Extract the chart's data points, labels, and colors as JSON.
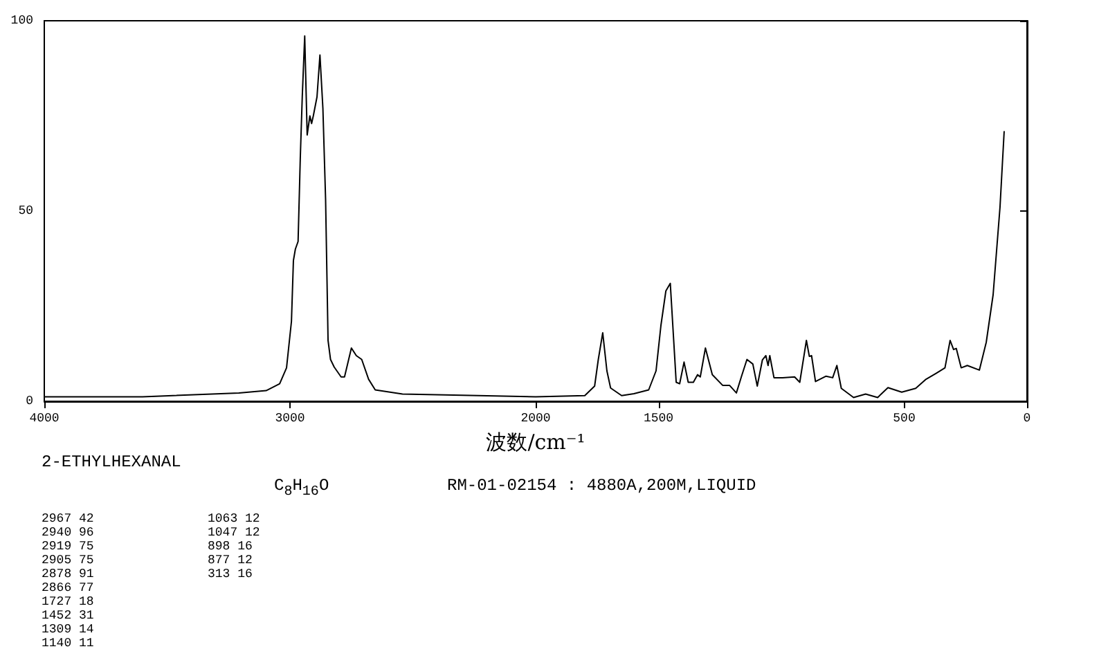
{
  "chart_data": {
    "type": "line",
    "xlabel": "波数/cm⁻¹",
    "xlim": [
      4000,
      0
    ],
    "ylim": [
      0,
      100
    ],
    "xticks": [
      4000,
      3000,
      2000,
      1500,
      500,
      0
    ],
    "yticks": [
      0,
      50,
      100
    ],
    "grid": false,
    "marker": "none",
    "line_style": "solid",
    "series": [
      {
        "color": "#000000",
        "x": [
          4000,
          3600,
          3208,
          3097,
          3042,
          3014,
          2994,
          2986,
          2978,
          2967,
          2958,
          2950,
          2940,
          2930,
          2919,
          2912,
          2905,
          2890,
          2878,
          2866,
          2855,
          2845,
          2835,
          2820,
          2792,
          2778,
          2750,
          2730,
          2708,
          2680,
          2653,
          2542,
          2300,
          2000,
          1800,
          1760,
          1745,
          1727,
          1710,
          1695,
          1650,
          1600,
          1540,
          1510,
          1490,
          1470,
          1452,
          1428,
          1414,
          1396,
          1379,
          1358,
          1341,
          1330,
          1309,
          1281,
          1239,
          1211,
          1183,
          1162,
          1140,
          1116,
          1098,
          1077,
          1063,
          1054,
          1047,
          1030,
          995,
          946,
          925,
          898,
          886,
          877,
          861,
          818,
          791,
          774,
          756,
          706,
          657,
          608,
          566,
          510,
          453,
          411,
          369,
          334,
          313,
          299,
          288,
          268,
          243,
          194,
          166,
          138,
          110,
          93
        ],
        "values": [
          1.2,
          1.2,
          2.2,
          2.8,
          4.6,
          8.8,
          21,
          37,
          40,
          42,
          64,
          80,
          96,
          70,
          75,
          73,
          75,
          80,
          91,
          77,
          53,
          16,
          11,
          9,
          6.4,
          6.4,
          14,
          12,
          11,
          5.8,
          3,
          1.9,
          1.6,
          1.2,
          1.5,
          4,
          11,
          18,
          8,
          3.5,
          1.5,
          2,
          3,
          8,
          20,
          29,
          31,
          5,
          4.6,
          10.3,
          5,
          5,
          7,
          6.4,
          14,
          7,
          4.2,
          4.2,
          2.2,
          6.6,
          11,
          9.8,
          4,
          10.9,
          12,
          9.4,
          12,
          6.2,
          6.2,
          6.4,
          5,
          16,
          11.8,
          12,
          5.2,
          6.6,
          6.2,
          9.4,
          3.4,
          1,
          1.9,
          1,
          3.6,
          2.4,
          3.4,
          5.8,
          7.4,
          8.8,
          16,
          13.6,
          13.9,
          8.8,
          9.4,
          8.2,
          15.5,
          28,
          51,
          71
        ]
      }
    ],
    "annotations": [
      "2-ETHYLHEXANAL",
      "C$_{8}$H$_{16}$O",
      "RM-01-02154 : 4880A,200M,LIQUID",
      "2967 42",
      "2940 96",
      "2919 75",
      "2905 75",
      "2878 91",
      "2866 77",
      "1727 18",
      "1452 31",
      "1309 14",
      "1140 11",
      "1063 12",
      "1047 12",
      "898 16",
      "877 12",
      "313 16"
    ]
  }
}
